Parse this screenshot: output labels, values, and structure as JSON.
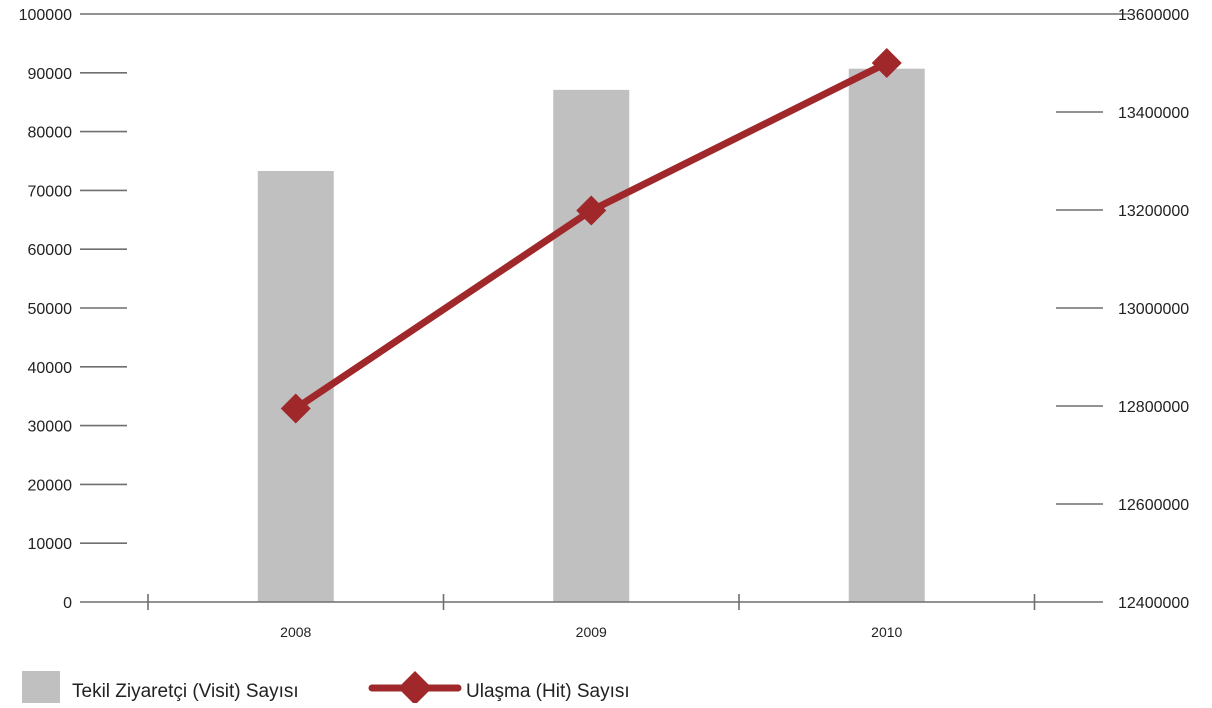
{
  "chart_data": {
    "type": "bar+line",
    "categories": [
      "2008",
      "2009",
      "2010"
    ],
    "series": [
      {
        "name": "Tekil Ziyaretçi (Visit) Sayısı",
        "kind": "bar",
        "axis": "left",
        "color": "#c0c0c0",
        "values": [
          73300,
          87100,
          90700
        ]
      },
      {
        "name": "Ulaşma (Hit) Sayısı",
        "kind": "line",
        "axis": "right",
        "color": "#a0282a",
        "marker": "diamond",
        "values": [
          12795000,
          13199000,
          13500000
        ]
      }
    ],
    "y_left": {
      "ylim": [
        0,
        100000
      ],
      "ticks": [
        "0",
        "10000",
        "20000",
        "30000",
        "40000",
        "50000",
        "60000",
        "70000",
        "80000",
        "90000",
        "100000"
      ]
    },
    "y_right": {
      "ylim": [
        12400000,
        13600000
      ],
      "ticks": [
        "12400000",
        "12600000",
        "12800000",
        "13000000",
        "13200000",
        "13400000",
        "13600000"
      ]
    },
    "title": "",
    "xlabel": "",
    "ylabel": "",
    "legend_position": "bottom-left",
    "grid": false
  }
}
